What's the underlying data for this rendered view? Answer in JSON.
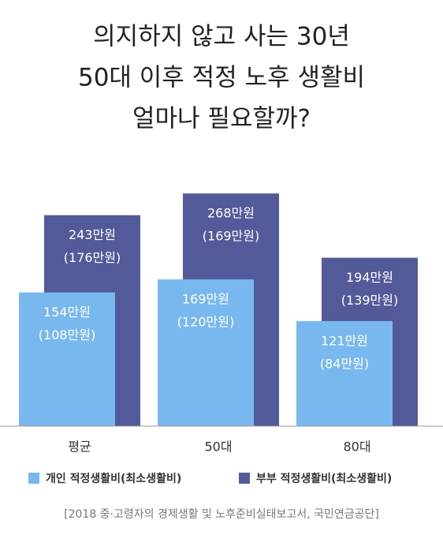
{
  "chart_data": {
    "type": "overlap-bar",
    "title": [
      "의지하지 않고 사는 30년",
      "50대 이후 적정 노후 생활비",
      "얼마나 필요할까?"
    ],
    "categories": [
      "평균",
      "50대",
      "80대"
    ],
    "series": [
      {
        "name": "개인 적정생활비(최소생활비)",
        "color": "#78b8ee",
        "values": [
          154,
          169,
          121
        ],
        "value_labels": [
          "154만원",
          "169만원",
          "121만원"
        ],
        "min_values": [
          108,
          120,
          84
        ],
        "min_value_labels": [
          "(108만원)",
          "(120만원)",
          "(84만원)"
        ]
      },
      {
        "name": "부부 적정생활비(최소생활비)",
        "color": "#535a99",
        "values": [
          243,
          268,
          194
        ],
        "value_labels": [
          "243만원",
          "268만원",
          "194만원"
        ],
        "min_values": [
          176,
          169,
          139
        ],
        "min_value_labels": [
          "(176만원)",
          "(169만원)",
          "(139만원)"
        ]
      }
    ],
    "source": "[2018 중·고령자의 경제생활 및 노후준비실태보고서, 국민연금공단]"
  }
}
